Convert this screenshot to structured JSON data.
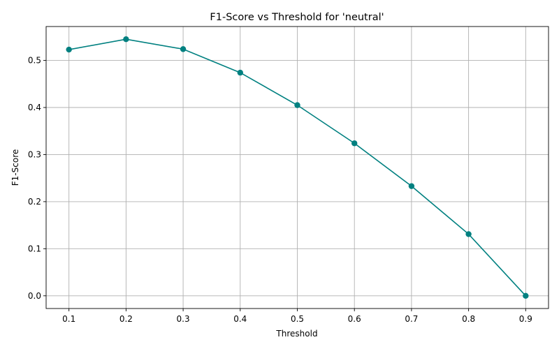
{
  "chart_data": {
    "type": "line",
    "title": "F1-Score vs Threshold for 'neutral'",
    "xlabel": "Threshold",
    "ylabel": "F1-Score",
    "x": [
      0.1,
      0.2,
      0.3,
      0.4,
      0.5,
      0.6,
      0.7,
      0.8,
      0.9
    ],
    "x_ticks": [
      "0.1",
      "0.2",
      "0.3",
      "0.4",
      "0.5",
      "0.6",
      "0.7",
      "0.8",
      "0.9"
    ],
    "y_ticks": [
      "0.0",
      "0.1",
      "0.2",
      "0.3",
      "0.4",
      "0.5"
    ],
    "xlim": [
      0.06,
      0.94
    ],
    "ylim": [
      -0.027,
      0.572
    ],
    "grid": true,
    "series": [
      {
        "values": [
          0.523,
          0.545,
          0.524,
          0.474,
          0.405,
          0.324,
          0.233,
          0.131,
          0.0
        ],
        "color": "#008080",
        "marker": "circle"
      }
    ]
  }
}
